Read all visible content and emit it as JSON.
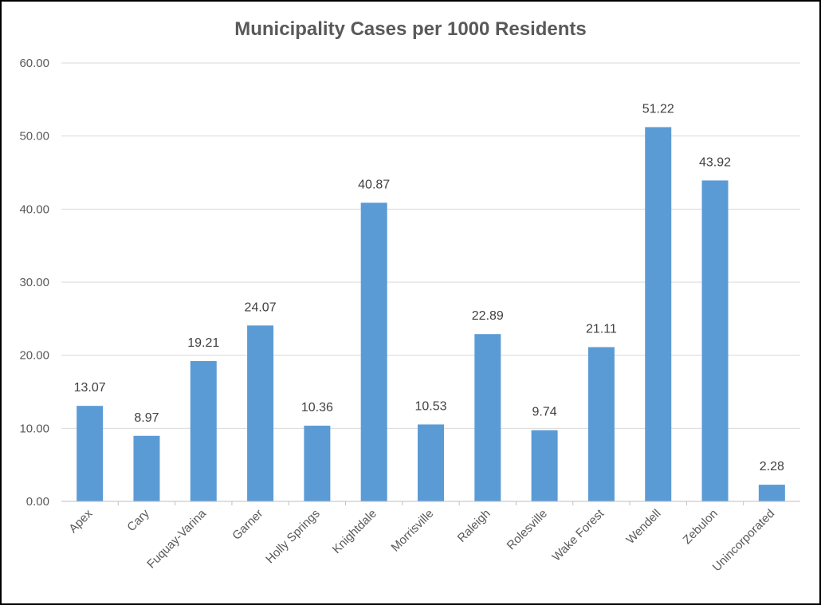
{
  "chart_data": {
    "type": "bar",
    "title": "Municipality Cases per 1000 Residents",
    "xlabel": "",
    "ylabel": "",
    "ylim": [
      0,
      60
    ],
    "yticks": [
      "0.00",
      "10.00",
      "20.00",
      "30.00",
      "40.00",
      "50.00",
      "60.00"
    ],
    "grid": true,
    "legend": "none",
    "bar_color": "#5b9bd5",
    "categories": [
      "Apex",
      "Cary",
      "Fuquay-Varina",
      "Garner",
      "Holly Springs",
      "Knightdale",
      "Morrisville",
      "Raleigh",
      "Rolesville",
      "Wake Forest",
      "Wendell",
      "Zebulon",
      "Unincorporated"
    ],
    "values": [
      13.07,
      8.97,
      19.21,
      24.07,
      10.36,
      40.87,
      10.53,
      22.89,
      9.74,
      21.11,
      51.22,
      43.92,
      2.28
    ],
    "data_labels": [
      "13.07",
      "8.97",
      "19.21",
      "24.07",
      "10.36",
      "40.87",
      "10.53",
      "22.89",
      "9.74",
      "21.11",
      "51.22",
      "43.92",
      "2.28"
    ]
  }
}
